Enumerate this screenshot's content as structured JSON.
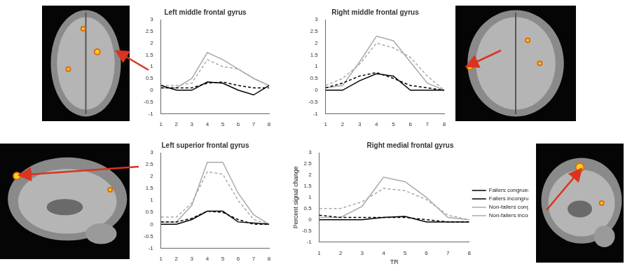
{
  "chart_data": [
    {
      "type": "line",
      "title": "Left middle frontal gyrus",
      "x": [
        1,
        2,
        3,
        4,
        5,
        6,
        7,
        8
      ],
      "xlim": [
        1,
        8
      ],
      "xticks": [
        1,
        2,
        3,
        4,
        5,
        6,
        7,
        8
      ],
      "ylim": [
        -1,
        3
      ],
      "yticks": [
        -1,
        -0.5,
        0,
        0.5,
        1,
        1.5,
        2,
        2.5,
        3
      ],
      "grid": false,
      "series": [
        {
          "color": "#000000",
          "line_style": "solid",
          "values": [
            0.2,
            0.0,
            0.0,
            0.35,
            0.3,
            0.0,
            -0.2,
            0.2
          ]
        },
        {
          "color": "#000000",
          "line_style": "dashed",
          "values": [
            0.1,
            0.1,
            0.1,
            0.3,
            0.35,
            0.2,
            0.1,
            0.1
          ]
        },
        {
          "color": "#aaaaaa",
          "line_style": "solid",
          "values": [
            0.1,
            0.1,
            0.5,
            1.6,
            1.3,
            0.9,
            0.5,
            0.2
          ]
        },
        {
          "color": "#aaaaaa",
          "line_style": "dashed",
          "values": [
            0.2,
            0.2,
            0.3,
            1.3,
            1.0,
            0.9,
            0.5,
            0.2
          ]
        }
      ]
    },
    {
      "type": "line",
      "title": "Right middle frontal gyrus",
      "x": [
        1,
        2,
        3,
        4,
        5,
        6,
        7,
        8
      ],
      "xlim": [
        1,
        8
      ],
      "xticks": [
        1,
        2,
        3,
        4,
        5,
        6,
        7,
        8
      ],
      "ylim": [
        -1,
        3
      ],
      "yticks": [
        -1,
        -0.5,
        0,
        0.5,
        1,
        1.5,
        2,
        2.5,
        3
      ],
      "grid": false,
      "series": [
        {
          "color": "#000000",
          "line_style": "solid",
          "values": [
            0.0,
            0.0,
            0.4,
            0.7,
            0.6,
            0.0,
            0.0,
            0.0
          ]
        },
        {
          "color": "#000000",
          "line_style": "dashed",
          "values": [
            0.1,
            0.3,
            0.6,
            0.75,
            0.5,
            0.2,
            0.1,
            0.0
          ]
        },
        {
          "color": "#aaaaaa",
          "line_style": "solid",
          "values": [
            0.1,
            0.2,
            1.2,
            2.3,
            2.1,
            1.2,
            0.3,
            0.0
          ]
        },
        {
          "color": "#aaaaaa",
          "line_style": "dashed",
          "values": [
            0.2,
            0.5,
            1.1,
            2.0,
            1.8,
            1.4,
            0.6,
            0.0
          ]
        }
      ]
    },
    {
      "type": "line",
      "title": "Left superior frontal gyrus",
      "x": [
        1,
        2,
        3,
        4,
        5,
        6,
        7,
        8
      ],
      "xlim": [
        1,
        8
      ],
      "xticks": [
        1,
        2,
        3,
        4,
        5,
        6,
        7,
        8
      ],
      "ylim": [
        -1,
        3
      ],
      "yticks": [
        -1,
        -0.5,
        0,
        0.5,
        1,
        1.5,
        2,
        2.5,
        3
      ],
      "grid": false,
      "series": [
        {
          "color": "#000000",
          "line_style": "solid",
          "values": [
            0.0,
            0.0,
            0.2,
            0.55,
            0.55,
            0.1,
            0.05,
            0.0
          ]
        },
        {
          "color": "#000000",
          "line_style": "dashed",
          "values": [
            0.1,
            0.1,
            0.25,
            0.55,
            0.5,
            0.2,
            0.0,
            0.0
          ]
        },
        {
          "color": "#aaaaaa",
          "line_style": "solid",
          "values": [
            0.1,
            0.1,
            0.8,
            2.6,
            2.6,
            1.3,
            0.4,
            0.0
          ]
        },
        {
          "color": "#aaaaaa",
          "line_style": "dashed",
          "values": [
            0.3,
            0.3,
            0.9,
            2.2,
            2.1,
            1.0,
            0.2,
            0.0
          ]
        }
      ]
    },
    {
      "type": "line",
      "title": "Right medial frontal gyrus",
      "x_label": "TR",
      "y_label": "Percent signal change",
      "x": [
        1,
        2,
        3,
        4,
        5,
        6,
        7,
        8
      ],
      "xlim": [
        1,
        8
      ],
      "xticks": [
        1,
        2,
        3,
        4,
        5,
        6,
        7,
        8
      ],
      "ylim": [
        -1,
        3
      ],
      "yticks": [
        -1,
        -0.5,
        0,
        0.5,
        1,
        1.5,
        2,
        2.5,
        3
      ],
      "grid": false,
      "legend": "right",
      "series": [
        {
          "name": "Fallers congruent",
          "color": "#000000",
          "line_style": "solid",
          "values": [
            0.0,
            0.0,
            0.0,
            0.1,
            0.15,
            -0.1,
            -0.1,
            -0.1
          ]
        },
        {
          "name": "Fallers incongruent",
          "color": "#000000",
          "line_style": "dashed",
          "values": [
            0.2,
            0.1,
            0.1,
            0.1,
            0.1,
            0.0,
            -0.1,
            -0.1
          ]
        },
        {
          "name": "Non-fallers congruent",
          "color": "#aaaaaa",
          "line_style": "solid",
          "values": [
            0.1,
            0.1,
            0.6,
            1.9,
            1.7,
            1.0,
            0.1,
            0.0
          ]
        },
        {
          "name": "Non-fallers incongruent",
          "color": "#aaaaaa",
          "line_style": "dashed",
          "values": [
            0.5,
            0.5,
            0.8,
            1.4,
            1.3,
            0.9,
            0.2,
            0.0
          ]
        }
      ]
    }
  ]
}
